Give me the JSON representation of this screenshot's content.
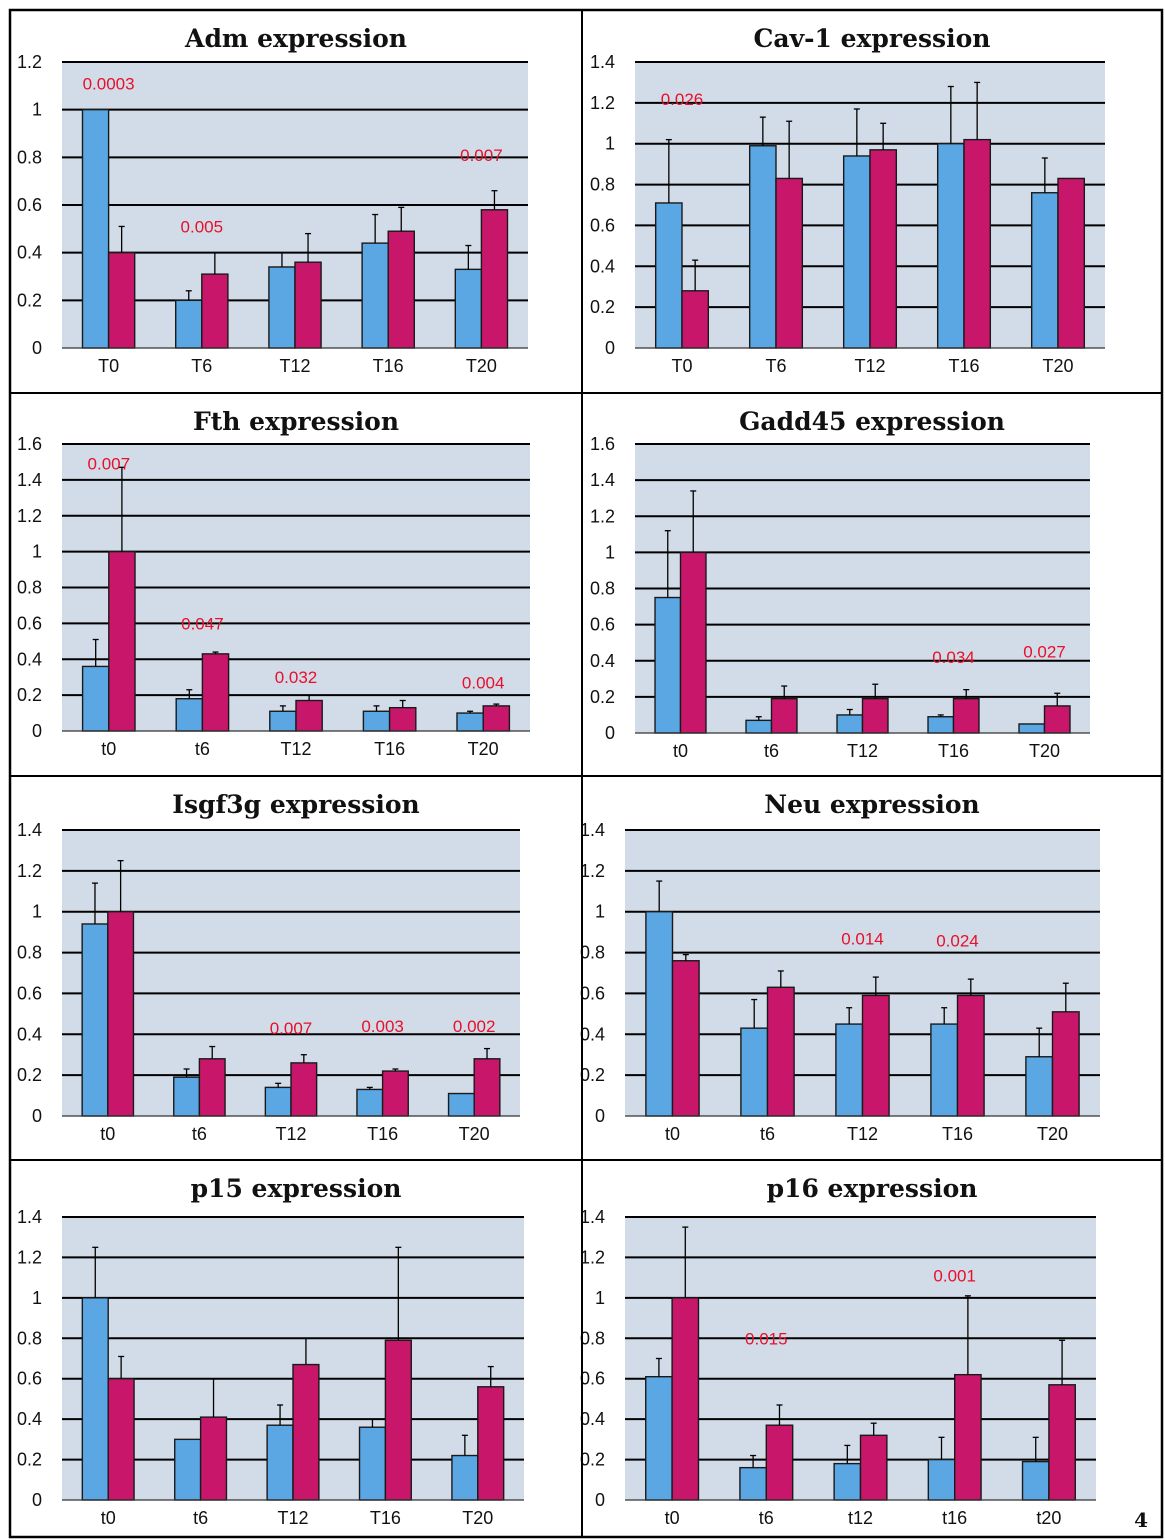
{
  "page_number": "4",
  "colors": {
    "series_a": "#5aa7e4",
    "series_b": "#c8176a",
    "plot_bg": "#d2dbe8",
    "pvalue": "#e8102a"
  },
  "chart_data": [
    {
      "type": "bar",
      "title": "Adm expression",
      "categories": [
        "T0",
        "T6",
        "T12",
        "T16",
        "T20"
      ],
      "y_ticks": [
        "0",
        "0.2",
        "0.4",
        "0.6",
        "0.8",
        "1",
        "1.2"
      ],
      "ylim": [
        0,
        1.2
      ],
      "series": [
        {
          "values": [
            1.0,
            0.2,
            0.34,
            0.44,
            0.33
          ],
          "errors": [
            0,
            0.04,
            0.06,
            0.12,
            0.1
          ]
        },
        {
          "values": [
            0.4,
            0.31,
            0.36,
            0.49,
            0.58
          ],
          "errors": [
            0.11,
            0.09,
            0.12,
            0.1,
            0.08
          ]
        }
      ],
      "annotations": [
        {
          "category": 0,
          "text": "0.0003",
          "y": 1.11
        },
        {
          "category": 1,
          "text": "0.005",
          "y": 0.51
        },
        {
          "category": 4,
          "text": "0.007",
          "y": 0.81
        }
      ]
    },
    {
      "type": "bar",
      "title": "Cav-1 expression",
      "categories": [
        "T0",
        "T6",
        "T12",
        "T16",
        "T20"
      ],
      "y_ticks": [
        "0",
        "0.2",
        "0.4",
        "0.6",
        "0.8",
        "1",
        "1.2",
        "1.4"
      ],
      "ylim": [
        0,
        1.4
      ],
      "series": [
        {
          "values": [
            0.71,
            0.99,
            0.94,
            1.0,
            0.76
          ],
          "errors": [
            0.31,
            0.14,
            0.23,
            0.28,
            0.17
          ]
        },
        {
          "values": [
            0.28,
            0.83,
            0.97,
            1.02,
            0.83
          ],
          "errors": [
            0.15,
            0.28,
            0.13,
            0.28,
            0
          ]
        }
      ],
      "annotations": [
        {
          "category": 0,
          "text": "0.026",
          "y": 1.22
        }
      ]
    },
    {
      "type": "bar",
      "title": "Fth expression",
      "categories": [
        "t0",
        "t6",
        "T12",
        "T16",
        "T20"
      ],
      "y_ticks": [
        "0",
        "0.2",
        "0.4",
        "0.6",
        "0.8",
        "1",
        "1.2",
        "1.4",
        "1.6"
      ],
      "ylim": [
        0,
        1.6
      ],
      "series": [
        {
          "values": [
            0.36,
            0.18,
            0.11,
            0.11,
            0.1
          ],
          "errors": [
            0.15,
            0.05,
            0.03,
            0.03,
            0.01
          ]
        },
        {
          "values": [
            1.0,
            0.43,
            0.17,
            0.13,
            0.14
          ],
          "errors": [
            0.47,
            0.01,
            0.03,
            0.04,
            0.01
          ]
        }
      ],
      "annotations": [
        {
          "category": 0,
          "text": "0.007",
          "y": 1.49
        },
        {
          "category": 1,
          "text": "0.047",
          "y": 0.6
        },
        {
          "category": 2,
          "text": "0.032",
          "y": 0.3
        },
        {
          "category": 4,
          "text": "0.004",
          "y": 0.27
        }
      ]
    },
    {
      "type": "bar",
      "title": "Gadd45 expression",
      "categories": [
        "t0",
        "t6",
        "T12",
        "T16",
        "T20"
      ],
      "y_ticks": [
        "0",
        "0.2",
        "0.4",
        "0.6",
        "0.8",
        "1",
        "1.2",
        "1.4",
        "1.6"
      ],
      "ylim": [
        0,
        1.6
      ],
      "series": [
        {
          "values": [
            0.75,
            0.07,
            0.1,
            0.09,
            0.05
          ],
          "errors": [
            0.37,
            0.02,
            0.03,
            0.01,
            0
          ]
        },
        {
          "values": [
            1.0,
            0.19,
            0.19,
            0.19,
            0.15
          ],
          "errors": [
            0.34,
            0.07,
            0.08,
            0.05,
            0.07
          ]
        }
      ],
      "annotations": [
        {
          "category": 3,
          "text": "0.034",
          "y": 0.42
        },
        {
          "category": 4,
          "text": "0.027",
          "y": 0.45
        }
      ]
    },
    {
      "type": "bar",
      "title": "Isgf3g expression",
      "categories": [
        "t0",
        "t6",
        "T12",
        "T16",
        "T20"
      ],
      "y_ticks": [
        "0",
        "0.2",
        "0.4",
        "0.6",
        "0.8",
        "1",
        "1.2",
        "1.4"
      ],
      "ylim": [
        0,
        1.4
      ],
      "series": [
        {
          "values": [
            0.94,
            0.19,
            0.14,
            0.13,
            0.11
          ],
          "errors": [
            0.2,
            0.04,
            0.02,
            0.01,
            0
          ]
        },
        {
          "values": [
            1.0,
            0.28,
            0.26,
            0.22,
            0.28
          ],
          "errors": [
            0.25,
            0.06,
            0.04,
            0.01,
            0.05
          ]
        }
      ],
      "annotations": [
        {
          "category": 2,
          "text": "0.007",
          "y": 0.43
        },
        {
          "category": 3,
          "text": "0.003",
          "y": 0.44
        },
        {
          "category": 4,
          "text": "0.002",
          "y": 0.44
        }
      ]
    },
    {
      "type": "bar",
      "title": "Neu expression",
      "categories": [
        "t0",
        "t6",
        "T12",
        "T16",
        "T20"
      ],
      "y_ticks": [
        "0",
        "0.2",
        "0.4",
        "0.6",
        "0.8",
        "1",
        "1.2",
        "1.4"
      ],
      "ylim": [
        0,
        1.4
      ],
      "series": [
        {
          "values": [
            1.0,
            0.43,
            0.45,
            0.45,
            0.29
          ],
          "errors": [
            0.15,
            0.14,
            0.08,
            0.08,
            0.14
          ]
        },
        {
          "values": [
            0.76,
            0.63,
            0.59,
            0.59,
            0.51
          ],
          "errors": [
            0.03,
            0.08,
            0.09,
            0.08,
            0.14
          ]
        }
      ],
      "annotations": [
        {
          "category": 2,
          "text": "0.014",
          "y": 0.87
        },
        {
          "category": 3,
          "text": "0.024",
          "y": 0.86
        }
      ]
    },
    {
      "type": "bar",
      "title": "p15 expression",
      "categories": [
        "t0",
        "t6",
        "T12",
        "T16",
        "T20"
      ],
      "y_ticks": [
        "0",
        "0.2",
        "0.4",
        "0.6",
        "0.8",
        "1",
        "1.2",
        "1.4"
      ],
      "ylim": [
        0,
        1.4
      ],
      "series": [
        {
          "values": [
            1.0,
            0.3,
            0.37,
            0.36,
            0.22
          ],
          "errors": [
            0.25,
            0,
            0.1,
            0.04,
            0.1
          ]
        },
        {
          "values": [
            0.6,
            0.41,
            0.67,
            0.79,
            0.56
          ],
          "errors": [
            0.11,
            0.19,
            0.13,
            0.46,
            0.1
          ]
        }
      ],
      "annotations": []
    },
    {
      "type": "bar",
      "title": "p16 expression",
      "categories": [
        "t0",
        "t6",
        "t12",
        "t16",
        "t20"
      ],
      "y_ticks": [
        "0",
        "0.2",
        "0.4",
        "0.6",
        "0.8",
        "1",
        "1.2",
        "1.4"
      ],
      "ylim": [
        0,
        1.4
      ],
      "series": [
        {
          "values": [
            0.61,
            0.16,
            0.18,
            0.2,
            0.19
          ],
          "errors": [
            0.09,
            0.06,
            0.09,
            0.11,
            0.12
          ]
        },
        {
          "values": [
            1.0,
            0.37,
            0.32,
            0.62,
            0.57
          ],
          "errors": [
            0.35,
            0.1,
            0.06,
            0.39,
            0.22
          ]
        }
      ],
      "annotations": [
        {
          "category": 1,
          "text": "0.015",
          "y": 0.8
        },
        {
          "category": 3,
          "text": "0.001",
          "y": 1.11
        }
      ]
    }
  ]
}
